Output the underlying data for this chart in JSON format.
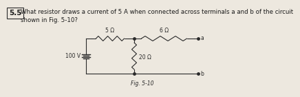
{
  "problem_number": "5.5",
  "problem_text": "What resistor draws a current of 5 A when connected across terminals a and b of the circuit\nshown in Fig. 5-10?",
  "fig_label": "Fig. 5-10",
  "voltage_label": "100 V",
  "r1_label": "5 Ω",
  "r2_label": "6 Ω",
  "r3_label": "20 Ω",
  "terminal_a": "a",
  "terminal_b": "b",
  "bg_color": "#ede8df",
  "text_color": "#1a1a1a",
  "line_color": "#2a2a2a",
  "font_size_text": 6.2,
  "font_size_labels": 5.5,
  "font_size_problem_num": 7.5
}
